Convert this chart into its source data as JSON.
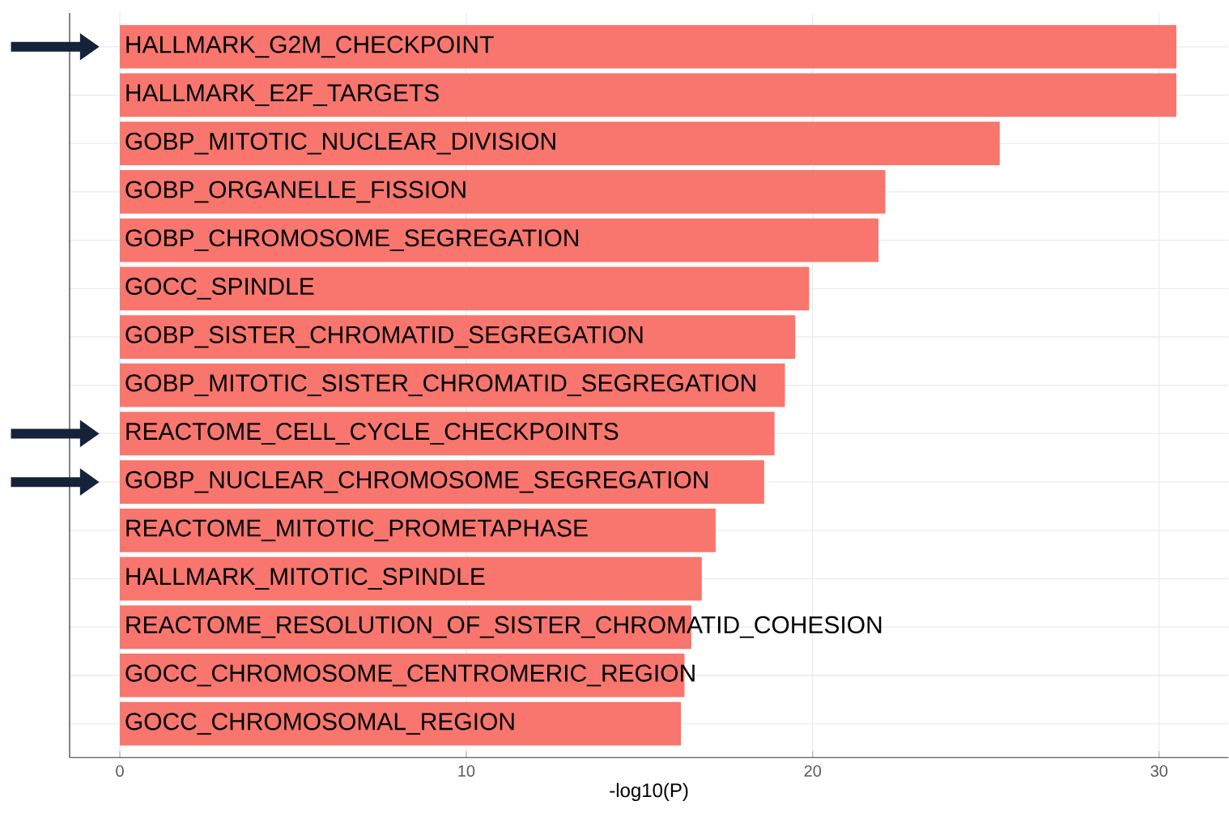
{
  "chart_data": {
    "type": "bar",
    "orientation": "horizontal",
    "xlabel": "-log10(P)",
    "categories": [
      "HALLMARK_G2M_CHECKPOINT",
      "HALLMARK_E2F_TARGETS",
      "GOBP_MITOTIC_NUCLEAR_DIVISION",
      "GOBP_ORGANELLE_FISSION",
      "GOBP_CHROMOSOME_SEGREGATION",
      "GOCC_SPINDLE",
      "GOBP_SISTER_CHROMATID_SEGREGATION",
      "GOBP_MITOTIC_SISTER_CHROMATID_SEGREGATION",
      "REACTOME_CELL_CYCLE_CHECKPOINTS",
      "GOBP_NUCLEAR_CHROMOSOME_SEGREGATION",
      "REACTOME_MITOTIC_PROMETAPHASE",
      "HALLMARK_MITOTIC_SPINDLE",
      "REACTOME_RESOLUTION_OF_SISTER_CHROMATID_COHESION",
      "GOCC_CHROMOSOME_CENTROMERIC_REGION",
      "GOCC_CHROMOSOMAL_REGION"
    ],
    "values": [
      30.5,
      30.5,
      25.4,
      22.1,
      21.9,
      19.9,
      19.5,
      19.2,
      18.9,
      18.6,
      17.2,
      16.8,
      16.5,
      16.3,
      16.2
    ],
    "color": "#f8766d",
    "xlim": [
      -1.45,
      32
    ],
    "xticks": [
      0,
      10,
      20,
      30
    ],
    "grid": true,
    "tick_labels": "x"
  }
}
